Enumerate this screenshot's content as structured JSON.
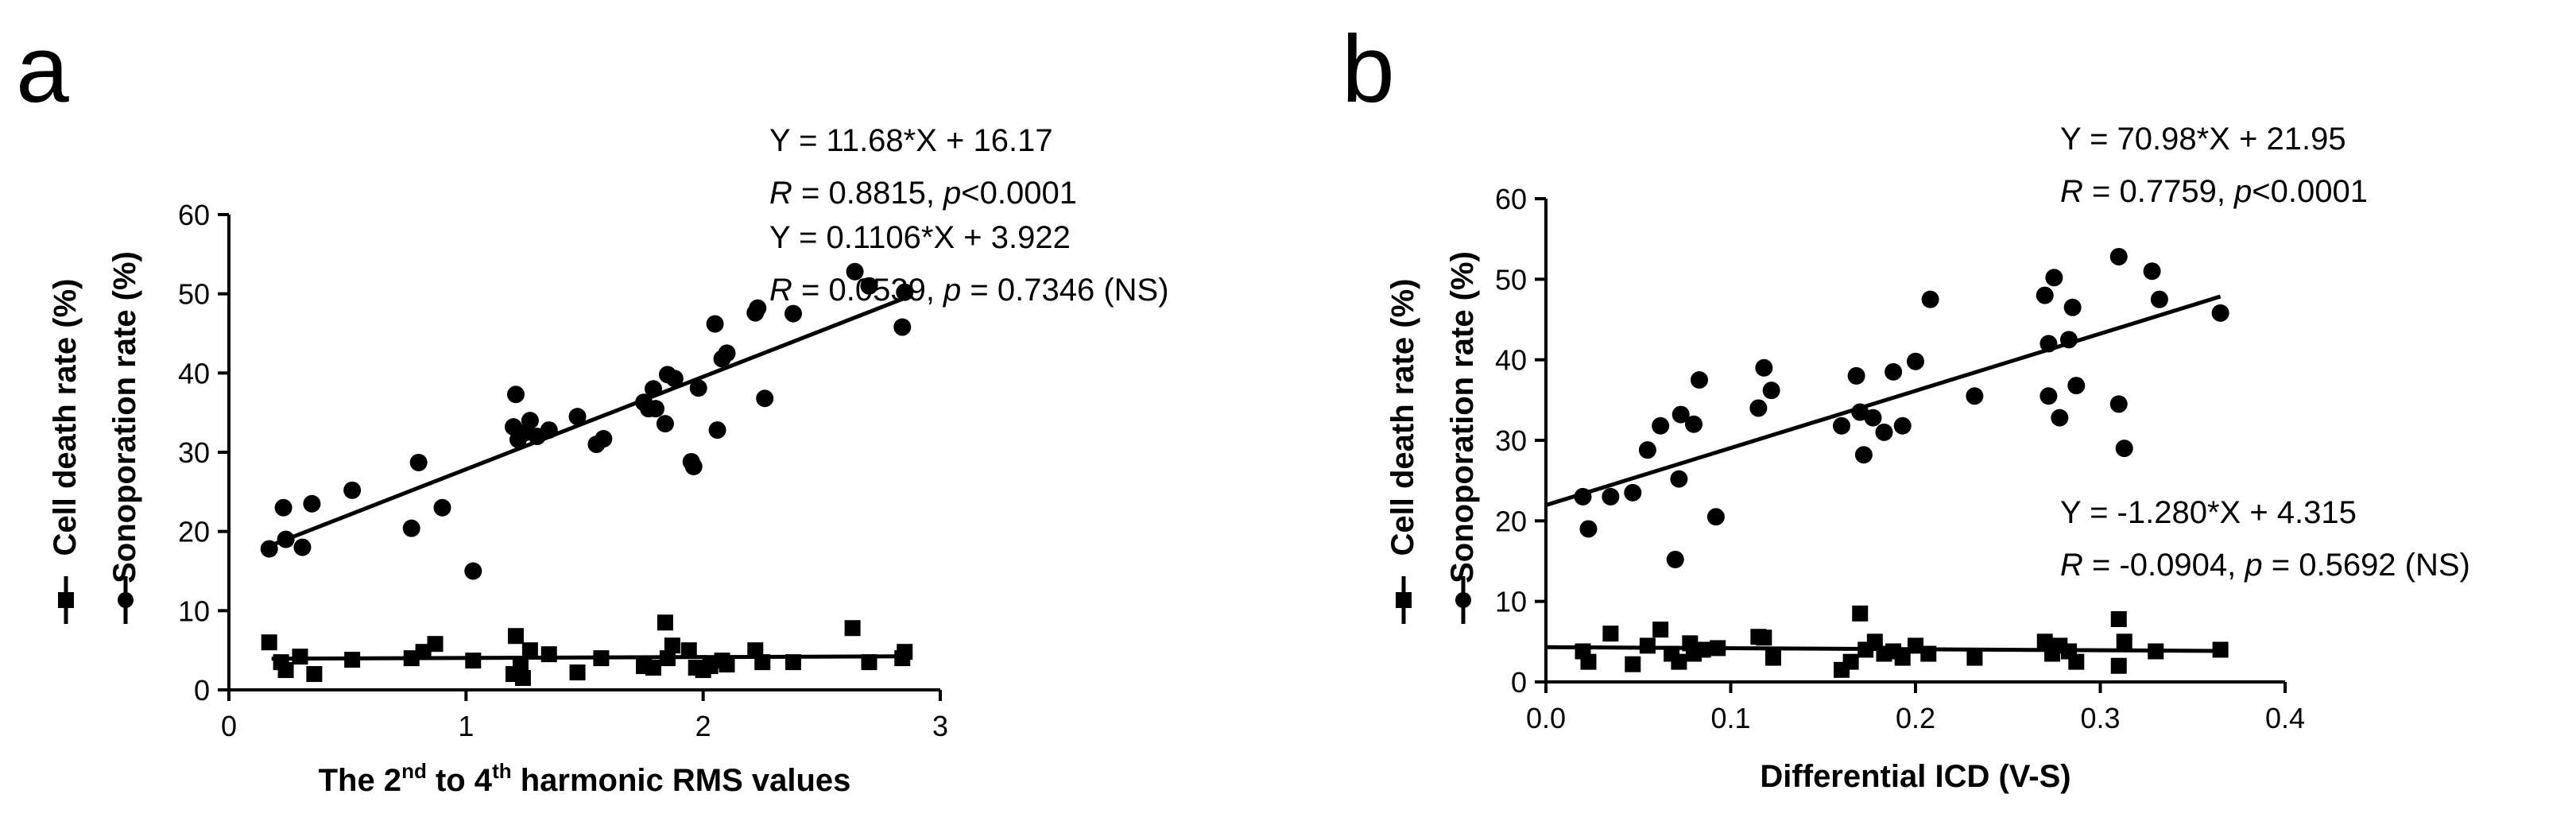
{
  "chart_data": [
    {
      "type": "scatter",
      "panel_label": "a",
      "xlabel": {
        "pre": "The 2",
        "sup1": "nd",
        "mid": " to 4",
        "sup2": "th",
        "post": " harmonic RMS values"
      },
      "ylabel": {
        "primary": "Sonoporation rate (%)",
        "secondary": "Cell death rate (%)"
      },
      "xlim": [
        0,
        3
      ],
      "ylim": [
        0,
        60
      ],
      "xticks": [
        "0",
        "1",
        "2",
        "3"
      ],
      "yticks": [
        "0",
        "10",
        "20",
        "30",
        "40",
        "50",
        "60"
      ],
      "xtick_values": [
        0,
        1,
        2,
        3
      ],
      "ytick_values": [
        0,
        10,
        20,
        30,
        40,
        50,
        60
      ],
      "series": [
        {
          "name": "Sonoporation rate",
          "marker": "circle",
          "fit": {
            "slope": 11.68,
            "intercept": 16.17,
            "x_range": [
              0.18,
              2.85
            ]
          },
          "equation": "Y = 11.68*X + 16.17",
          "stats": {
            "r_label": "R",
            "r_value": " = 0.8815, ",
            "p_label": "p",
            "p_value": "<0.0001"
          },
          "points": [
            [
              0.17,
              17.8
            ],
            [
              0.23,
              23.0
            ],
            [
              0.24,
              19.0
            ],
            [
              0.31,
              18.0
            ],
            [
              0.35,
              23.5
            ],
            [
              0.52,
              25.2
            ],
            [
              0.77,
              20.4
            ],
            [
              0.8,
              28.7
            ],
            [
              0.9,
              23.0
            ],
            [
              1.03,
              15.0
            ],
            [
              1.2,
              33.2
            ],
            [
              1.21,
              37.3
            ],
            [
              1.22,
              31.6
            ],
            [
              1.25,
              32.5
            ],
            [
              1.27,
              34.0
            ],
            [
              1.3,
              32.0
            ],
            [
              1.35,
              32.8
            ],
            [
              1.47,
              34.5
            ],
            [
              1.55,
              31.0
            ],
            [
              1.58,
              31.7
            ],
            [
              1.75,
              36.3
            ],
            [
              1.77,
              35.5
            ],
            [
              1.79,
              38.0
            ],
            [
              1.8,
              35.5
            ],
            [
              1.84,
              33.6
            ],
            [
              1.85,
              39.8
            ],
            [
              1.88,
              39.3
            ],
            [
              1.95,
              28.8
            ],
            [
              1.96,
              28.2
            ],
            [
              1.98,
              38.1
            ],
            [
              2.05,
              46.2
            ],
            [
              2.06,
              32.8
            ],
            [
              2.08,
              41.8
            ],
            [
              2.1,
              42.5
            ],
            [
              2.22,
              47.6
            ],
            [
              2.23,
              48.2
            ],
            [
              2.26,
              36.8
            ],
            [
              2.38,
              47.5
            ],
            [
              2.64,
              52.8
            ],
            [
              2.7,
              51.0
            ],
            [
              2.84,
              45.8
            ],
            [
              2.85,
              50.2
            ]
          ]
        },
        {
          "name": "Cell death rate",
          "marker": "square",
          "fit": {
            "slope": 0.1106,
            "intercept": 3.922,
            "x_range": [
              0.18,
              2.85
            ]
          },
          "equation": "Y = 0.1106*X + 3.922",
          "stats": {
            "r_label": "R",
            "r_value": " = 0.0539, ",
            "p_label": "p",
            "p_value": " = 0.7346 (NS)"
          },
          "points": [
            [
              0.17,
              6.0
            ],
            [
              0.22,
              3.5
            ],
            [
              0.24,
              2.5
            ],
            [
              0.3,
              4.2
            ],
            [
              0.36,
              2.0
            ],
            [
              0.52,
              3.8
            ],
            [
              0.77,
              4.0
            ],
            [
              0.82,
              4.8
            ],
            [
              0.87,
              5.8
            ],
            [
              1.03,
              3.7
            ],
            [
              1.2,
              2.0
            ],
            [
              1.21,
              6.8
            ],
            [
              1.23,
              3.0
            ],
            [
              1.24,
              1.5
            ],
            [
              1.27,
              5.0
            ],
            [
              1.35,
              4.5
            ],
            [
              1.47,
              2.2
            ],
            [
              1.57,
              4.0
            ],
            [
              1.75,
              3.0
            ],
            [
              1.79,
              2.8
            ],
            [
              1.84,
              8.5
            ],
            [
              1.85,
              4.0
            ],
            [
              1.87,
              5.6
            ],
            [
              1.94,
              5.0
            ],
            [
              1.97,
              2.8
            ],
            [
              2.0,
              2.5
            ],
            [
              2.03,
              3.0
            ],
            [
              2.08,
              3.7
            ],
            [
              2.1,
              3.2
            ],
            [
              2.22,
              5.0
            ],
            [
              2.25,
              3.5
            ],
            [
              2.38,
              3.5
            ],
            [
              2.63,
              7.8
            ],
            [
              2.7,
              3.5
            ],
            [
              2.84,
              4.0
            ],
            [
              2.85,
              4.8
            ]
          ]
        }
      ]
    },
    {
      "type": "scatter",
      "panel_label": "b",
      "xlabel": {
        "pre": "Differential ICD (V-S)",
        "sup1": "",
        "mid": "",
        "sup2": "",
        "post": ""
      },
      "ylabel": {
        "primary": "Sonoporation rate (%)",
        "secondary": "Cell death rate (%)"
      },
      "xlim": [
        0,
        0.4
      ],
      "ylim": [
        0,
        60
      ],
      "xticks": [
        "0.0",
        "0.1",
        "0.2",
        "0.3",
        "0.4"
      ],
      "yticks": [
        "0",
        "10",
        "20",
        "30",
        "40",
        "50",
        "60"
      ],
      "xtick_values": [
        0,
        0.1,
        0.2,
        0.3,
        0.4
      ],
      "ytick_values": [
        0,
        10,
        20,
        30,
        40,
        50,
        60
      ],
      "series": [
        {
          "name": "Sonoporation rate",
          "marker": "circle",
          "fit": {
            "slope": 70.98,
            "intercept": 21.95,
            "x_range": [
              0.0,
              0.365
            ]
          },
          "equation": "Y = 70.98*X + 21.95",
          "stats": {
            "r_label": "R",
            "r_value": " = 0.7759, ",
            "p_label": "p",
            "p_value": "<0.0001"
          },
          "points": [
            [
              0.02,
              23.0
            ],
            [
              0.023,
              19.0
            ],
            [
              0.035,
              23.0
            ],
            [
              0.047,
              23.5
            ],
            [
              0.055,
              28.8
            ],
            [
              0.062,
              31.8
            ],
            [
              0.07,
              15.2
            ],
            [
              0.072,
              25.2
            ],
            [
              0.073,
              33.2
            ],
            [
              0.08,
              32.0
            ],
            [
              0.083,
              37.5
            ],
            [
              0.092,
              20.5
            ],
            [
              0.115,
              34.0
            ],
            [
              0.118,
              39.0
            ],
            [
              0.122,
              36.2
            ],
            [
              0.16,
              31.8
            ],
            [
              0.168,
              38.0
            ],
            [
              0.17,
              33.5
            ],
            [
              0.172,
              28.2
            ],
            [
              0.177,
              32.8
            ],
            [
              0.183,
              31.0
            ],
            [
              0.188,
              38.5
            ],
            [
              0.193,
              31.8
            ],
            [
              0.2,
              39.8
            ],
            [
              0.208,
              47.5
            ],
            [
              0.232,
              35.5
            ],
            [
              0.27,
              48.0
            ],
            [
              0.272,
              35.5
            ],
            [
              0.272,
              42.0
            ],
            [
              0.275,
              50.2
            ],
            [
              0.278,
              32.8
            ],
            [
              0.283,
              42.5
            ],
            [
              0.285,
              46.5
            ],
            [
              0.287,
              36.8
            ],
            [
              0.31,
              34.5
            ],
            [
              0.31,
              52.8
            ],
            [
              0.313,
              29.0
            ],
            [
              0.328,
              51.0
            ],
            [
              0.332,
              47.5
            ],
            [
              0.365,
              45.8
            ]
          ]
        },
        {
          "name": "Cell death rate",
          "marker": "square",
          "fit": {
            "slope": -1.28,
            "intercept": 4.315,
            "x_range": [
              0.0,
              0.365
            ]
          },
          "equation": "Y = -1.280*X + 4.315",
          "stats": {
            "r_label": "R",
            "r_value": " = -0.0904, ",
            "p_label": "p",
            "p_value": " = 0.5692 (NS)"
          },
          "points": [
            [
              0.02,
              3.8
            ],
            [
              0.023,
              2.5
            ],
            [
              0.035,
              6.0
            ],
            [
              0.047,
              2.2
            ],
            [
              0.055,
              4.5
            ],
            [
              0.062,
              6.5
            ],
            [
              0.068,
              3.5
            ],
            [
              0.072,
              2.5
            ],
            [
              0.078,
              4.8
            ],
            [
              0.08,
              3.5
            ],
            [
              0.085,
              4.0
            ],
            [
              0.093,
              4.2
            ],
            [
              0.115,
              5.6
            ],
            [
              0.118,
              5.5
            ],
            [
              0.123,
              3.0
            ],
            [
              0.16,
              1.5
            ],
            [
              0.165,
              2.5
            ],
            [
              0.17,
              8.5
            ],
            [
              0.173,
              4.0
            ],
            [
              0.178,
              5.0
            ],
            [
              0.183,
              3.5
            ],
            [
              0.188,
              3.8
            ],
            [
              0.193,
              3.0
            ],
            [
              0.2,
              4.5
            ],
            [
              0.207,
              3.5
            ],
            [
              0.232,
              3.0
            ],
            [
              0.27,
              5.0
            ],
            [
              0.274,
              3.5
            ],
            [
              0.278,
              4.5
            ],
            [
              0.283,
              3.8
            ],
            [
              0.287,
              2.5
            ],
            [
              0.31,
              2.0
            ],
            [
              0.31,
              7.8
            ],
            [
              0.313,
              5.0
            ],
            [
              0.33,
              3.8
            ],
            [
              0.365,
              4.0
            ]
          ]
        }
      ]
    }
  ],
  "colors": {
    "ink": "#000000",
    "background": "#ffffff"
  }
}
